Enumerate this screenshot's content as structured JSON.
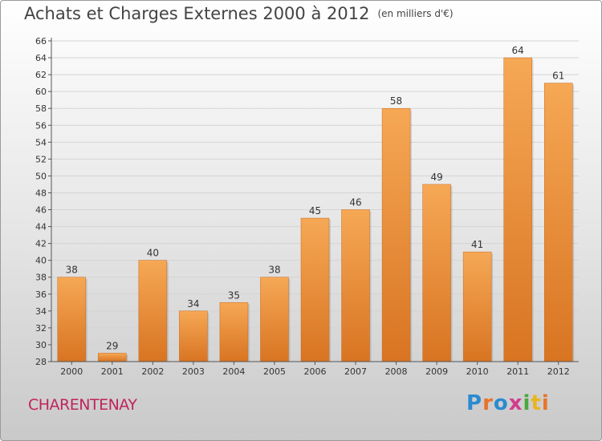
{
  "header": {
    "title": "Achats et Charges Externes 2000 à 2012",
    "unit_note": "(en milliers d'€)"
  },
  "footer": {
    "place": "CHARENTENAY",
    "logo_letters": [
      "P",
      "r",
      "o",
      "x",
      "i",
      "t",
      "i"
    ],
    "logo_colors": [
      "#2b8bd0",
      "#e8742a",
      "#2b8bd0",
      "#d23c8e",
      "#4aa83c",
      "#e8b51f",
      "#e8742a"
    ]
  },
  "colors": {
    "bar_top": "#f6a855",
    "bar_bottom": "#d87422",
    "axis": "#555555",
    "grid": "#d4d4d4",
    "text": "#333333"
  },
  "chart_data": {
    "type": "bar",
    "title": "Achats et Charges Externes 2000 à 2012",
    "subtitle": "(en milliers d'€)",
    "xlabel": "",
    "ylabel": "",
    "categories": [
      "2000",
      "2001",
      "2002",
      "2003",
      "2004",
      "2005",
      "2006",
      "2007",
      "2008",
      "2009",
      "2010",
      "2011",
      "2012"
    ],
    "values": [
      38,
      29,
      40,
      34,
      35,
      38,
      45,
      46,
      58,
      49,
      41,
      64,
      61
    ],
    "ylim": [
      28,
      66
    ],
    "yticks": [
      28,
      30,
      32,
      34,
      36,
      38,
      40,
      42,
      44,
      46,
      48,
      50,
      52,
      54,
      56,
      58,
      60,
      62,
      64,
      66
    ],
    "grid": true,
    "legend": "none"
  }
}
